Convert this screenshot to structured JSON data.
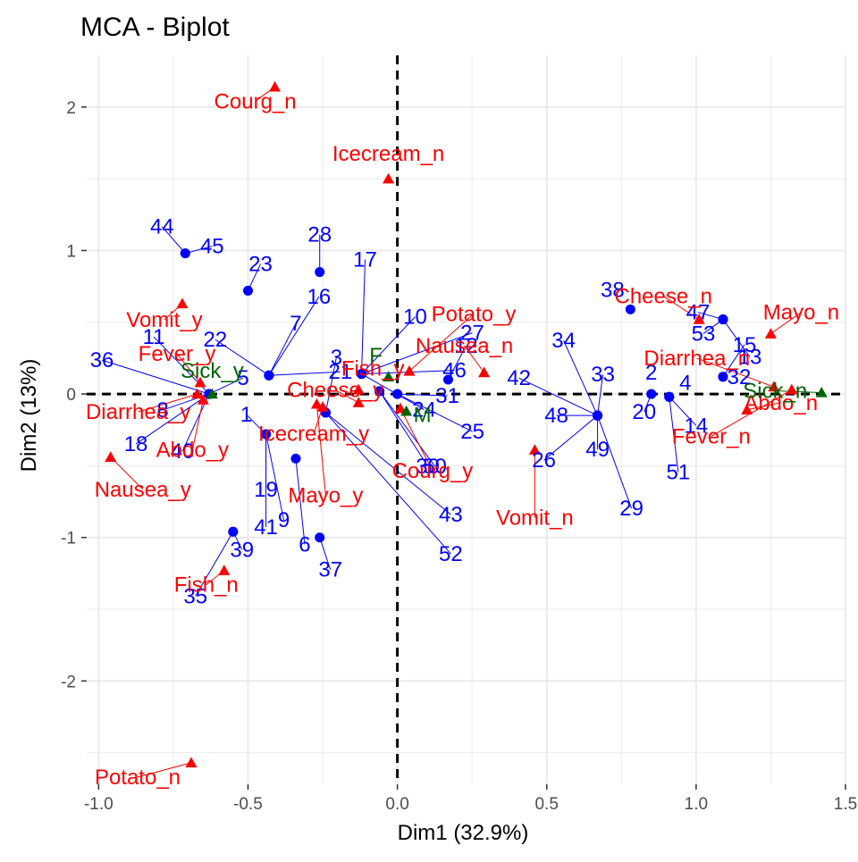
{
  "chart_data": {
    "type": "scatter",
    "title": "MCA - Biplot",
    "xlabel": "Dim1 (32.9%)",
    "ylabel": "Dim2 (13%)",
    "xlim": [
      -1.04,
      1.5
    ],
    "ylim": [
      -2.72,
      2.36
    ],
    "x_ticks": [
      -1.0,
      -0.5,
      0.0,
      0.5,
      1.0,
      1.5
    ],
    "x_tick_labels": [
      "-1.0",
      "-0.5",
      "0.0",
      "0.5",
      "1.0",
      "1.5"
    ],
    "y_ticks": [
      -2,
      -1,
      0,
      1,
      2
    ],
    "y_tick_labels": [
      "-2",
      "-1",
      "0",
      "1",
      "2"
    ],
    "grid": true,
    "legend": "none",
    "colors": {
      "individuals": "#0000ff",
      "individuals_overlap": "#00008b",
      "variables": "#ff0000",
      "supplementary": "#006400",
      "grid": "#ebebeb",
      "axis_text": "#4d4d4d"
    },
    "individuals": [
      {
        "label": "1",
        "x": -0.44,
        "y": -0.28
      },
      {
        "label": "2",
        "x": 0.85,
        "y": 0.0
      },
      {
        "label": "3",
        "x": -0.24,
        "y": -0.13
      },
      {
        "label": "4",
        "x": 0.91,
        "y": -0.02
      },
      {
        "label": "5",
        "x": -0.63,
        "y": 0.0
      },
      {
        "label": "6",
        "x": -0.34,
        "y": -0.45
      },
      {
        "label": "7",
        "x": -0.43,
        "y": 0.13
      },
      {
        "label": "8",
        "x": -0.63,
        "y": 0.0
      },
      {
        "label": "9",
        "x": -0.44,
        "y": -0.28
      },
      {
        "label": "10",
        "x": -0.12,
        "y": 0.14
      },
      {
        "label": "11",
        "x": -0.63,
        "y": 0.0
      },
      {
        "label": "12",
        "x": 0.17,
        "y": 0.1
      },
      {
        "label": "13",
        "x": 1.09,
        "y": 0.52
      },
      {
        "label": "14",
        "x": 0.91,
        "y": -0.02
      },
      {
        "label": "15",
        "x": 1.09,
        "y": 0.12
      },
      {
        "label": "16",
        "x": -0.43,
        "y": 0.13
      },
      {
        "label": "17",
        "x": -0.12,
        "y": 0.14
      },
      {
        "label": "18",
        "x": -0.63,
        "y": 0.0
      },
      {
        "label": "19",
        "x": -0.44,
        "y": -0.28
      },
      {
        "label": "20",
        "x": 0.85,
        "y": 0.0
      },
      {
        "label": "21",
        "x": -0.43,
        "y": 0.13
      },
      {
        "label": "22",
        "x": -0.43,
        "y": 0.13
      },
      {
        "label": "23",
        "x": -0.5,
        "y": 0.72
      },
      {
        "label": "24",
        "x": -0.12,
        "y": 0.14
      },
      {
        "label": "25",
        "x": 0.0,
        "y": 0.0
      },
      {
        "label": "26",
        "x": 0.67,
        "y": -0.15
      },
      {
        "label": "27",
        "x": -0.12,
        "y": 0.14
      },
      {
        "label": "28",
        "x": -0.26,
        "y": 0.85
      },
      {
        "label": "29",
        "x": 0.67,
        "y": -0.15
      },
      {
        "label": "30",
        "x": -0.06,
        "y": 0.02
      },
      {
        "label": "31",
        "x": 0.0,
        "y": 0.0
      },
      {
        "label": "32",
        "x": 1.09,
        "y": 0.12
      },
      {
        "label": "33",
        "x": 0.67,
        "y": -0.15
      },
      {
        "label": "34",
        "x": 0.67,
        "y": -0.15
      },
      {
        "label": "35",
        "x": -0.55,
        "y": -0.96
      },
      {
        "label": "36",
        "x": -0.63,
        "y": 0.0
      },
      {
        "label": "37",
        "x": -0.26,
        "y": -1.0
      },
      {
        "label": "38",
        "x": 0.78,
        "y": 0.59
      },
      {
        "label": "39",
        "x": -0.55,
        "y": -0.96
      },
      {
        "label": "40",
        "x": -0.63,
        "y": 0.0
      },
      {
        "label": "41",
        "x": -0.44,
        "y": -0.28
      },
      {
        "label": "42",
        "x": 0.67,
        "y": -0.15
      },
      {
        "label": "43",
        "x": -0.24,
        "y": -0.13
      },
      {
        "label": "44",
        "x": -0.71,
        "y": 0.98
      },
      {
        "label": "45",
        "x": -0.71,
        "y": 0.98
      },
      {
        "label": "46",
        "x": -0.12,
        "y": 0.14
      },
      {
        "label": "47",
        "x": 1.09,
        "y": 0.52
      },
      {
        "label": "48",
        "x": 0.67,
        "y": -0.15
      },
      {
        "label": "49",
        "x": 0.67,
        "y": -0.15
      },
      {
        "label": "50",
        "x": -0.06,
        "y": 0.02
      },
      {
        "label": "51",
        "x": 0.91,
        "y": -0.02
      },
      {
        "label": "52",
        "x": -0.24,
        "y": -0.13
      },
      {
        "label": "53",
        "x": 1.09,
        "y": 0.52
      }
    ],
    "variables": [
      {
        "label": "Courg_n",
        "x": -0.41,
        "y": 2.14
      },
      {
        "label": "Icecream_n",
        "x": -0.03,
        "y": 1.5
      },
      {
        "label": "Potato_y",
        "x": 0.04,
        "y": 0.16
      },
      {
        "label": "Cheese_n",
        "x": 1.01,
        "y": 0.52
      },
      {
        "label": "Mayo_n",
        "x": 1.25,
        "y": 0.42
      },
      {
        "label": "Nausea_n",
        "x": 0.29,
        "y": 0.15
      },
      {
        "label": "Diarrhea_n",
        "x": 1.26,
        "y": 0.05
      },
      {
        "label": "Abdo_n",
        "x": 1.17,
        "y": -0.11
      },
      {
        "label": "Fever_n",
        "x": 1.32,
        "y": 0.03
      },
      {
        "label": "Vomit_y",
        "x": -0.72,
        "y": 0.63
      },
      {
        "label": "Fever_y",
        "x": -0.66,
        "y": 0.08
      },
      {
        "label": "Diarrhea_y",
        "x": -0.67,
        "y": 0.0
      },
      {
        "label": "Abdo_y",
        "x": -0.65,
        "y": -0.04
      },
      {
        "label": "Nausea_y",
        "x": -0.96,
        "y": -0.44
      },
      {
        "label": "Fish_y",
        "x": -0.13,
        "y": 0.03
      },
      {
        "label": "Cheese_y",
        "x": -0.13,
        "y": -0.06
      },
      {
        "label": "Icecream_y",
        "x": -0.25,
        "y": -0.09
      },
      {
        "label": "Courg_y",
        "x": 0.01,
        "y": -0.1
      },
      {
        "label": "Vomit_n",
        "x": 0.46,
        "y": -0.39
      },
      {
        "label": "Mayo_y",
        "x": -0.27,
        "y": -0.07
      },
      {
        "label": "Fish_n",
        "x": -0.58,
        "y": -1.23
      },
      {
        "label": "Potato_n",
        "x": -0.69,
        "y": -2.57
      }
    ],
    "supplementary": [
      {
        "label": "Sick_y",
        "x": -0.62,
        "y": 0.0
      },
      {
        "label": "F",
        "x": -0.03,
        "y": 0.12
      },
      {
        "label": "M",
        "x": 0.03,
        "y": -0.12
      },
      {
        "label": "Sick_n",
        "x": 1.42,
        "y": 0.01
      }
    ]
  }
}
